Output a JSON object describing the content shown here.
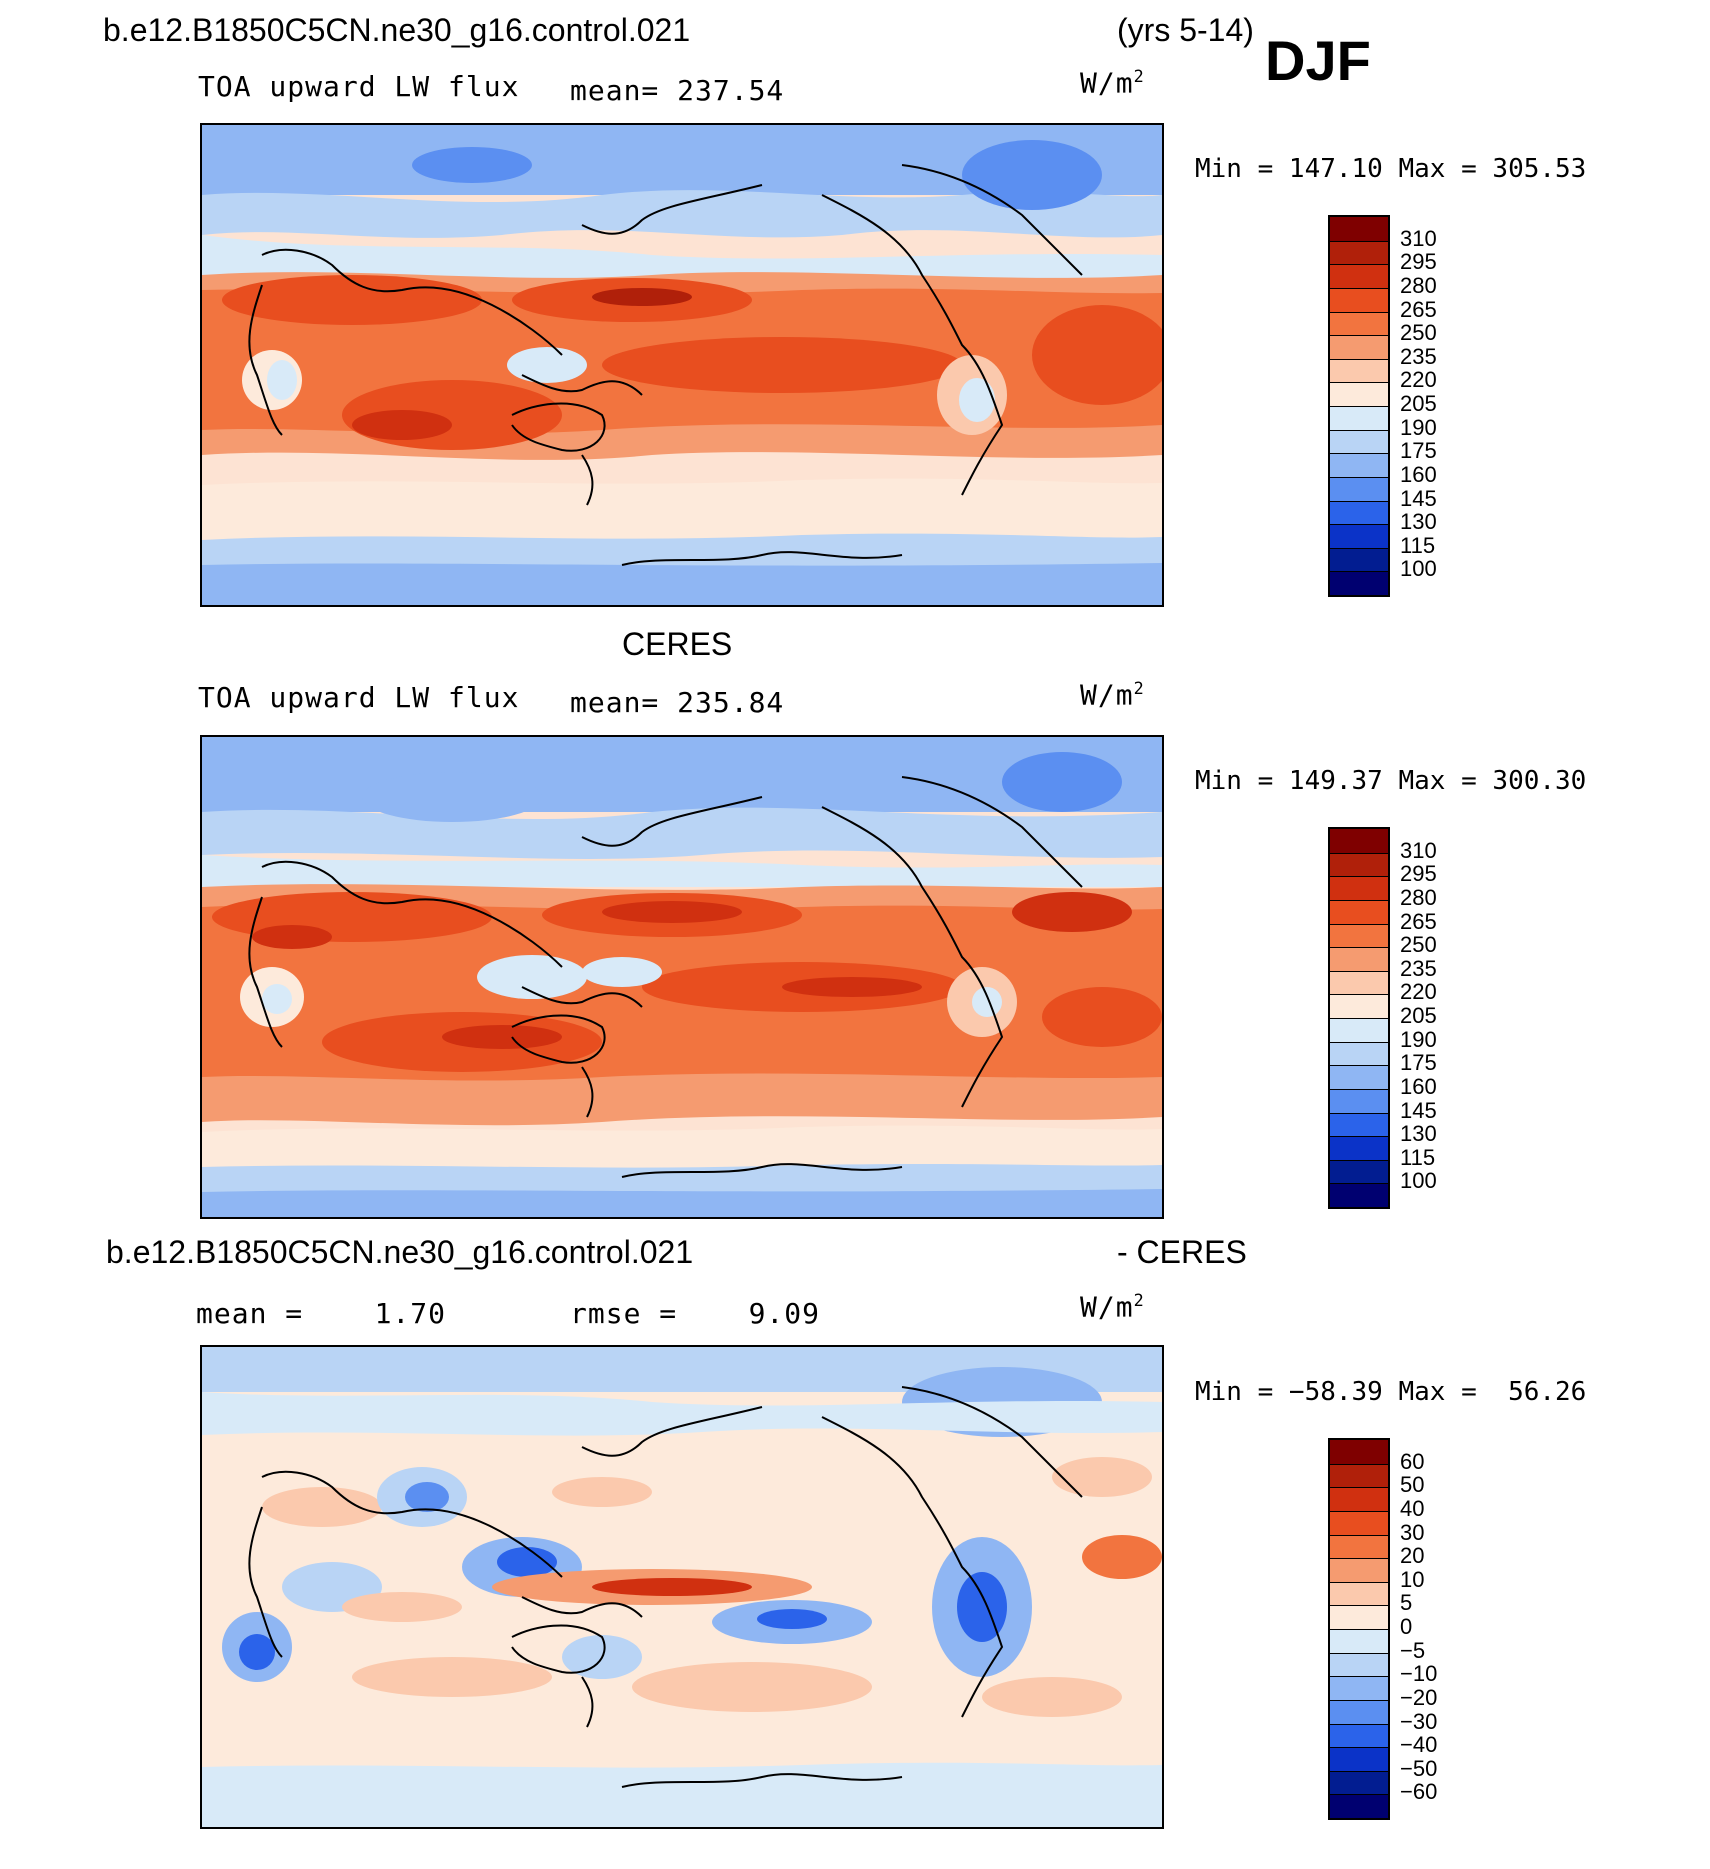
{
  "header": {
    "case_name": "b.e12.B1850C5CN.ne30_g16.control.021",
    "years": "(yrs 5-14)",
    "season": "DJF"
  },
  "panels": [
    {
      "id": "model",
      "section_title": "",
      "variable": "TOA upward LW flux",
      "stat1": "mean= 237.54",
      "stat2": "",
      "units": "W/m",
      "units_sup": "2",
      "minmax": "Min = 147.10 Max = 305.53",
      "colorbar_labels": [
        "310",
        "295",
        "280",
        "265",
        "250",
        "235",
        "220",
        "205",
        "190",
        "175",
        "160",
        "145",
        "130",
        "115",
        "100"
      ],
      "colorbar_colors": [
        "#7f0000",
        "#b0200a",
        "#d03010",
        "#e84e1f",
        "#f2743f",
        "#f59b70",
        "#fbc9ad",
        "#fdeadb",
        "#d8eaf8",
        "#b9d4f5",
        "#8fb6f3",
        "#5b8ff1",
        "#2b63ea",
        "#0b33c8",
        "#021d91",
        "#000070"
      ]
    },
    {
      "id": "obs",
      "section_title": "CERES",
      "variable": "TOA upward LW flux",
      "stat1": "mean= 235.84",
      "stat2": "",
      "units": "W/m",
      "units_sup": "2",
      "minmax": "Min = 149.37 Max = 300.30",
      "colorbar_labels": [
        "310",
        "295",
        "280",
        "265",
        "250",
        "235",
        "220",
        "205",
        "190",
        "175",
        "160",
        "145",
        "130",
        "115",
        "100"
      ],
      "colorbar_colors": [
        "#7f0000",
        "#b0200a",
        "#d03010",
        "#e84e1f",
        "#f2743f",
        "#f59b70",
        "#fbc9ad",
        "#fdeadb",
        "#d8eaf8",
        "#b9d4f5",
        "#8fb6f3",
        "#5b8ff1",
        "#2b63ea",
        "#0b33c8",
        "#021d91",
        "#000070"
      ]
    },
    {
      "id": "diff",
      "section_title": "b.e12.B1850C5CN.ne30_g16.control.021",
      "section_title_right": "- CERES",
      "variable": "",
      "stat1": "mean =    1.70",
      "stat2": "rmse =    9.09",
      "units": "W/m",
      "units_sup": "2",
      "minmax": "Min = −58.39 Max =  56.26",
      "colorbar_labels": [
        "60",
        "50",
        "40",
        "30",
        "20",
        "10",
        "5",
        "0",
        "−5",
        "−10",
        "−20",
        "−30",
        "−40",
        "−50",
        "−60"
      ],
      "colorbar_colors": [
        "#7f0000",
        "#b0200a",
        "#d03010",
        "#e84e1f",
        "#f2743f",
        "#f59b70",
        "#fbc9ad",
        "#fdeadb",
        "#d8eaf8",
        "#b9d4f5",
        "#8fb6f3",
        "#5b8ff1",
        "#2b63ea",
        "#0b33c8",
        "#021d91",
        "#000070"
      ]
    }
  ]
}
